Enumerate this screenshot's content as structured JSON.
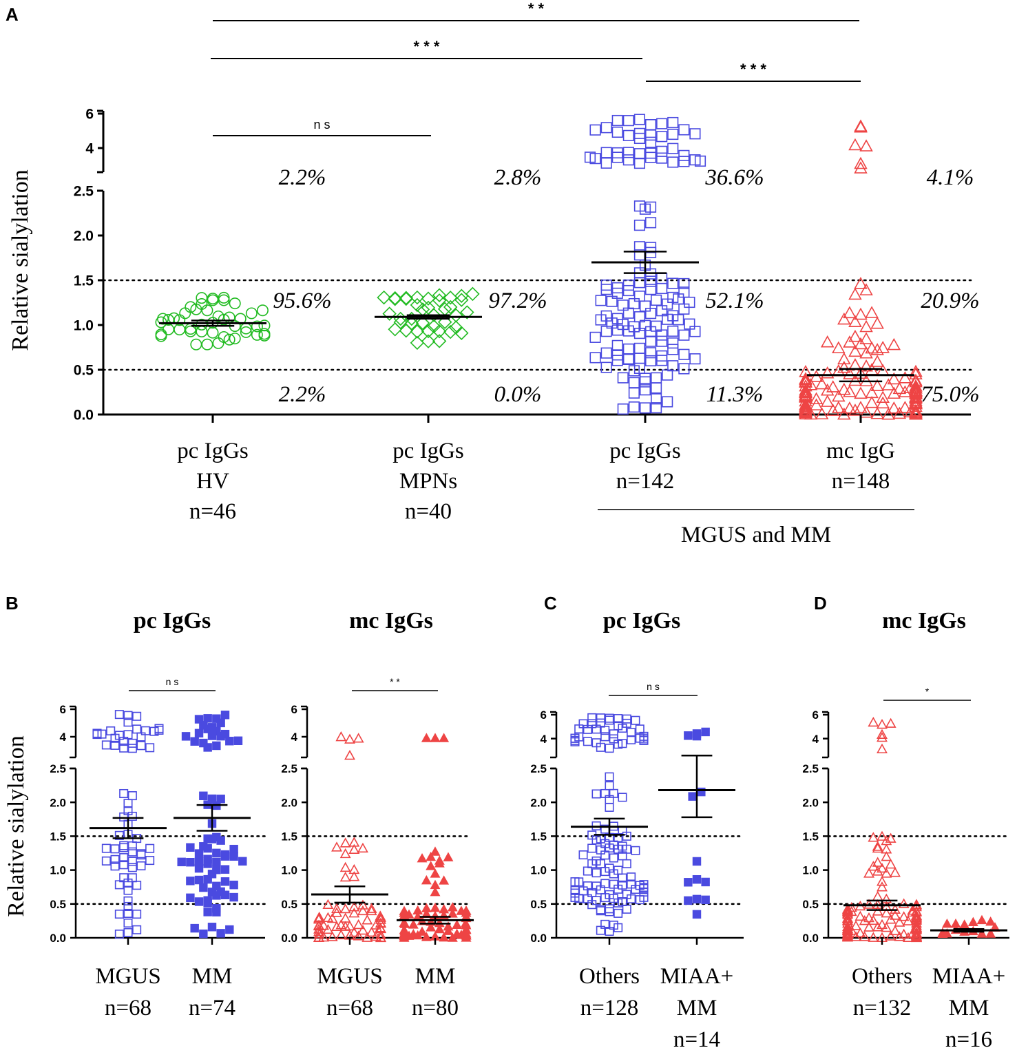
{
  "chart_data": [
    {
      "panel": "A",
      "type": "scatter",
      "ylabel": "Relative sialylation",
      "lower_ticks": [
        "0.0",
        "0.5",
        "1.0",
        "1.5",
        "2.0",
        "2.5"
      ],
      "upper_ticks": [
        "4",
        "6"
      ],
      "lower_range": [
        0,
        2.5
      ],
      "upper_range": [
        3,
        6
      ],
      "thresholds": [
        0.5,
        1.5
      ],
      "groups": [
        {
          "label_lines": [
            "pc IgGs",
            "HV",
            "n=46"
          ],
          "marker": "circle",
          "color": "#22bb22",
          "n": 46,
          "mean": 1.02,
          "sem": 0.03,
          "pct_high": "2.2%",
          "pct_mid": "95.6%",
          "pct_low": "2.2%"
        },
        {
          "label_lines": [
            "pc IgGs",
            "MPNs",
            "n=40"
          ],
          "marker": "diamond",
          "color": "#22bb22",
          "n": 40,
          "mean": 1.09,
          "sem": 0.02,
          "pct_high": "2.8%",
          "pct_mid": "97.2%",
          "pct_low": "0.0%"
        },
        {
          "label_lines": [
            "pc IgGs",
            "n=142"
          ],
          "marker": "square",
          "color": "#4a4ae0",
          "n": 142,
          "mean": 1.7,
          "sem": 0.12,
          "pct_high": "36.6%",
          "pct_mid": "52.1%",
          "pct_low": "11.3%"
        },
        {
          "label_lines": [
            "mc IgG",
            "n=148"
          ],
          "marker": "triangle",
          "color": "#ee4444",
          "n": 148,
          "mean": 0.44,
          "sem": 0.07,
          "pct_high": "4.1%",
          "pct_mid": "20.9%",
          "pct_low": "75.0%"
        }
      ],
      "bracket_label": "MGUS and MM",
      "significance": [
        {
          "from": 1,
          "to": 4,
          "label": "* *"
        },
        {
          "from": 1,
          "to": 3,
          "label": "* * *"
        },
        {
          "from": 3,
          "to": 4,
          "label": "* * *"
        },
        {
          "from": 1,
          "to": 2,
          "label": "n s"
        }
      ]
    },
    {
      "panel": "B",
      "title": "pc IgGs",
      "type": "scatter",
      "ylabel": "Relative sialylation",
      "groups": [
        {
          "label_lines": [
            "MGUS",
            "n=68"
          ],
          "marker": "square",
          "filled": false,
          "color": "#4a4ae0",
          "n": 68,
          "mean": 1.62,
          "sem": 0.15
        },
        {
          "label_lines": [
            "MM",
            "n=74"
          ],
          "marker": "square",
          "filled": true,
          "color": "#4a4ae0",
          "n": 74,
          "mean": 1.77,
          "sem": 0.19
        }
      ],
      "significance": "n s"
    },
    {
      "panel": "B2",
      "title": "mc IgGs",
      "type": "scatter",
      "groups": [
        {
          "label_lines": [
            "MGUS",
            "n=68"
          ],
          "marker": "triangle",
          "filled": false,
          "color": "#ee4444",
          "n": 68,
          "mean": 0.64,
          "sem": 0.12
        },
        {
          "label_lines": [
            "MM",
            "n=80"
          ],
          "marker": "triangle",
          "filled": true,
          "color": "#ee4444",
          "n": 80,
          "mean": 0.26,
          "sem": 0.05
        }
      ],
      "significance": "* *"
    },
    {
      "panel": "C",
      "title": "pc IgGs",
      "type": "scatter",
      "groups": [
        {
          "label_lines": [
            "Others",
            "n=128"
          ],
          "marker": "square",
          "filled": false,
          "color": "#4a4ae0",
          "n": 128,
          "mean": 1.64,
          "sem": 0.12
        },
        {
          "label_lines": [
            "MIAA+",
            "MM",
            "n=14"
          ],
          "marker": "square",
          "filled": true,
          "color": "#4a4ae0",
          "n": 14,
          "mean": 2.18,
          "sem": 0.4
        }
      ],
      "significance": "n s"
    },
    {
      "panel": "D",
      "title": "mc IgGs",
      "type": "scatter",
      "groups": [
        {
          "label_lines": [
            "Others",
            "n=132"
          ],
          "marker": "triangle",
          "filled": false,
          "color": "#ee4444",
          "n": 132,
          "mean": 0.48,
          "sem": 0.07
        },
        {
          "label_lines": [
            "MIAA+",
            "MM",
            "n=16"
          ],
          "marker": "triangle",
          "filled": true,
          "color": "#ee4444",
          "n": 16,
          "mean": 0.11,
          "sem": 0.02
        }
      ],
      "significance": "*"
    }
  ]
}
